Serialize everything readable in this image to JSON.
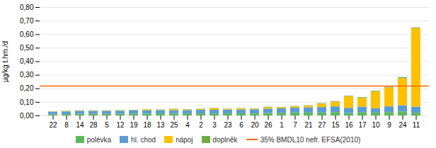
{
  "chart_data": {
    "type": "bar",
    "stacked": true,
    "categories": [
      "22",
      "8",
      "14",
      "28",
      "5",
      "12",
      "19",
      "18",
      "13",
      "25",
      "4",
      "2",
      "3",
      "23",
      "6",
      "20",
      "26",
      "1",
      "7",
      "21",
      "27",
      "15",
      "16",
      "17",
      "10",
      "9",
      "24",
      "11"
    ],
    "series": [
      {
        "name": "polévka",
        "color": "#5cb85c",
        "values": [
          0.008,
          0.01,
          0.012,
          0.012,
          0.012,
          0.013,
          0.014,
          0.014,
          0.015,
          0.014,
          0.015,
          0.015,
          0.015,
          0.015,
          0.016,
          0.015,
          0.018,
          0.02,
          0.022,
          0.022,
          0.022,
          0.025,
          0.018,
          0.025,
          0.022,
          0.025,
          0.03,
          0.02
        ]
      },
      {
        "name": "hl. chod",
        "color": "#5b9bd5",
        "values": [
          0.018,
          0.02,
          0.022,
          0.022,
          0.022,
          0.022,
          0.024,
          0.024,
          0.025,
          0.025,
          0.025,
          0.028,
          0.027,
          0.028,
          0.028,
          0.03,
          0.032,
          0.032,
          0.035,
          0.038,
          0.04,
          0.042,
          0.038,
          0.04,
          0.03,
          0.042,
          0.045,
          0.045
        ]
      },
      {
        "name": "nápoj",
        "color": "#ffc000",
        "values": [
          0.002,
          0.002,
          0.002,
          0.002,
          0.002,
          0.002,
          0.002,
          0.005,
          0.002,
          0.008,
          0.005,
          0.005,
          0.012,
          0.005,
          0.008,
          0.005,
          0.01,
          0.008,
          0.01,
          0.012,
          0.025,
          0.035,
          0.085,
          0.065,
          0.125,
          0.14,
          0.2,
          0.58
        ]
      },
      {
        "name": "doplněk",
        "color": "#70ad47",
        "values": [
          0.002,
          0.002,
          0.002,
          0.002,
          0.002,
          0.002,
          0.002,
          0.002,
          0.002,
          0.002,
          0.002,
          0.002,
          0.002,
          0.002,
          0.002,
          0.002,
          0.004,
          0.003,
          0.003,
          0.003,
          0.004,
          0.004,
          0.004,
          0.005,
          0.005,
          0.005,
          0.008,
          0.005
        ]
      }
    ],
    "reference_lines": [
      {
        "name": "35% BMDL10 nefr. EFSA(2010)",
        "value": 0.22,
        "color": "#ff6600"
      }
    ],
    "ylabel": "µg/kg t.hm./d",
    "ylim": [
      0,
      0.8
    ],
    "yticks": [
      {
        "value": 0,
        "label": "0,00"
      },
      {
        "value": 0.1,
        "label": "0,10"
      },
      {
        "value": 0.2,
        "label": "0,20"
      },
      {
        "value": 0.3,
        "label": "0,30"
      },
      {
        "value": 0.4,
        "label": "0,40"
      },
      {
        "value": 0.5,
        "label": "0,50"
      },
      {
        "value": 0.6,
        "label": "0,60"
      },
      {
        "value": 0.7,
        "label": "0,70"
      },
      {
        "value": 0.8,
        "label": "0,80"
      }
    ],
    "grid": true,
    "legend": "bottom"
  }
}
